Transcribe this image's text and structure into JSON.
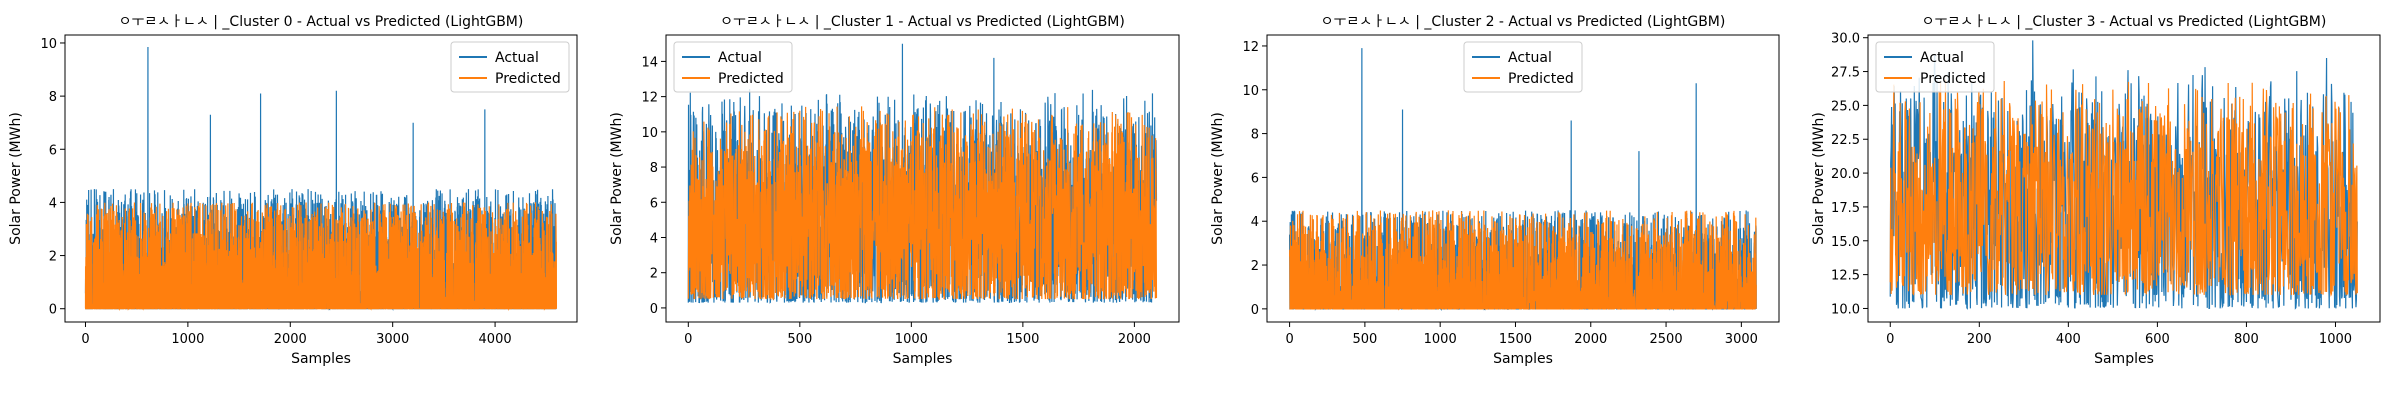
{
  "colors": {
    "actual": "#1f77b4",
    "predicted": "#ff7f0e"
  },
  "chart_data": [
    {
      "type": "line",
      "title": "ㅇㅜㄹㅅㅏㄴㅅ | _Cluster 0 - Actual vs Predicted (LightGBM)",
      "xlabel": "Samples",
      "ylabel": "Solar Power (MWh)",
      "xlim": [
        -200,
        4800
      ],
      "ylim": [
        -0.5,
        10.3
      ],
      "xticks": [
        0,
        1000,
        2000,
        3000,
        4000
      ],
      "yticks": [
        0,
        2,
        4,
        6,
        8,
        10
      ],
      "legend": "top-right",
      "series": [
        {
          "name": "Actual",
          "color": "#1f77b4",
          "n": 4600,
          "baseline": 0,
          "typical_max": 4.5,
          "peaks": [
            {
              "x": 610,
              "y": 9.85
            },
            {
              "x": 1710,
              "y": 8.1
            },
            {
              "x": 2450,
              "y": 8.2
            },
            {
              "x": 1220,
              "y": 7.3
            },
            {
              "x": 3200,
              "y": 7.0
            },
            {
              "x": 3900,
              "y": 7.5
            }
          ]
        },
        {
          "name": "Predicted",
          "color": "#ff7f0e",
          "n": 4600,
          "baseline": 0,
          "typical_max": 4.0
        }
      ]
    },
    {
      "type": "line",
      "title": "ㅇㅜㄹㅅㅏㄴㅅ | _Cluster 1 - Actual vs Predicted (LightGBM)",
      "xlabel": "Samples",
      "ylabel": "Solar Power (MWh)",
      "xlim": [
        -100,
        2200
      ],
      "ylim": [
        -0.8,
        15.5
      ],
      "xticks": [
        0,
        500,
        1000,
        1500,
        2000
      ],
      "yticks": [
        0,
        2,
        4,
        6,
        8,
        10,
        12,
        14
      ],
      "legend": "top-left",
      "series": [
        {
          "name": "Actual",
          "color": "#1f77b4",
          "n": 2100,
          "range": [
            0.3,
            12.5
          ],
          "peaks": [
            {
              "x": 960,
              "y": 15.0
            },
            {
              "x": 1370,
              "y": 14.2
            }
          ]
        },
        {
          "name": "Predicted",
          "color": "#ff7f0e",
          "n": 2100,
          "range": [
            0.5,
            11.5
          ]
        }
      ]
    },
    {
      "type": "line",
      "title": "ㅇㅜㄹㅅㅏㄴㅅ | _Cluster 2 - Actual vs Predicted (LightGBM)",
      "xlabel": "Samples",
      "ylabel": "Solar Power (MWh)",
      "xlim": [
        -150,
        3250
      ],
      "ylim": [
        -0.6,
        12.5
      ],
      "xticks": [
        0,
        500,
        1000,
        1500,
        2000,
        2500,
        3000
      ],
      "yticks": [
        0,
        2,
        4,
        6,
        8,
        10,
        12
      ],
      "legend": "top-center",
      "series": [
        {
          "name": "Actual",
          "color": "#1f77b4",
          "n": 3100,
          "baseline": 0,
          "typical_max": 4.5,
          "peaks": [
            {
              "x": 480,
              "y": 11.9
            },
            {
              "x": 2700,
              "y": 10.3
            },
            {
              "x": 750,
              "y": 9.1
            },
            {
              "x": 1870,
              "y": 8.6
            },
            {
              "x": 2320,
              "y": 7.2
            }
          ]
        },
        {
          "name": "Predicted",
          "color": "#ff7f0e",
          "n": 3100,
          "baseline": 0,
          "typical_max": 4.5
        }
      ]
    },
    {
      "type": "line",
      "title": "ㅇㅜㄹㅅㅏㄴㅅ | _Cluster 3 - Actual vs Predicted (LightGBM)",
      "xlabel": "Samples",
      "ylabel": "Solar Power (MWh)",
      "xlim": [
        -50,
        1100
      ],
      "ylim": [
        9.0,
        30.2
      ],
      "xticks": [
        0,
        200,
        400,
        600,
        800,
        1000
      ],
      "yticks": [
        10.0,
        12.5,
        15.0,
        17.5,
        20.0,
        22.5,
        25.0,
        27.5,
        30.0
      ],
      "legend": "top-left",
      "series": [
        {
          "name": "Actual",
          "color": "#1f77b4",
          "n": 1050,
          "range": [
            10.0,
            28.0
          ],
          "peaks": [
            {
              "x": 320,
              "y": 29.8
            },
            {
              "x": 100,
              "y": 28.8
            },
            {
              "x": 980,
              "y": 28.5
            }
          ]
        },
        {
          "name": "Predicted",
          "color": "#ff7f0e",
          "n": 1050,
          "range": [
            11.0,
            27.0
          ]
        }
      ]
    }
  ]
}
